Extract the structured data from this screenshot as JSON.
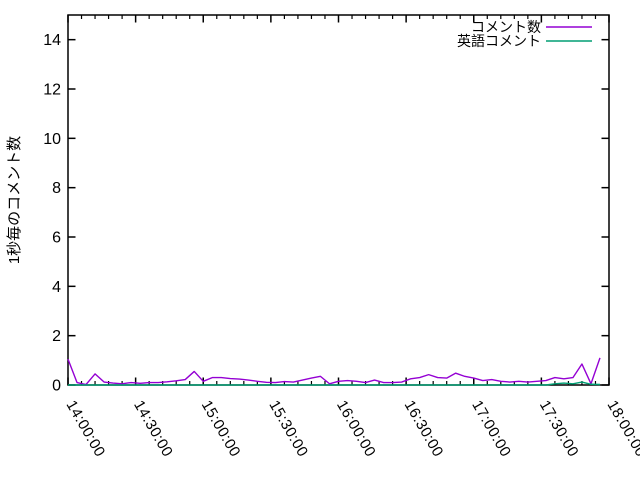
{
  "figure": {
    "background": "#ffffff",
    "border_color": "#000000",
    "text_color": "#000000"
  },
  "chart_data": {
    "type": "line",
    "title": "",
    "xlabel": "",
    "ylabel": "1秒毎のコメント数",
    "grid": false,
    "legend_position": "top-right-inside",
    "x_axis": {
      "start": "14:00:00",
      "end": "18:00:00",
      "tick_labels": [
        "14:00:00",
        "14:30:00",
        "15:00:00",
        "15:30:00",
        "16:00:00",
        "16:30:00",
        "17:00:00",
        "17:30:00",
        "18:00:00"
      ],
      "minor_tick_intervals_per_major": 5,
      "tick_label_rotation_deg": 60
    },
    "y_axis": {
      "min": 0,
      "max": 15,
      "tick_labels": [
        "0",
        "2",
        "4",
        "6",
        "8",
        "10",
        "12",
        "14"
      ]
    },
    "x_step_minutes": 4,
    "series": [
      {
        "name": "コメント数",
        "color": "#9400d3",
        "values": [
          1.05,
          0.1,
          0.02,
          0.45,
          0.12,
          0.08,
          0.05,
          0.1,
          0.07,
          0.1,
          0.1,
          0.13,
          0.17,
          0.22,
          0.55,
          0.15,
          0.3,
          0.3,
          0.26,
          0.24,
          0.2,
          0.15,
          0.11,
          0.1,
          0.14,
          0.12,
          0.2,
          0.28,
          0.35,
          0.05,
          0.15,
          0.18,
          0.15,
          0.1,
          0.2,
          0.1,
          0.1,
          0.12,
          0.25,
          0.3,
          0.42,
          0.3,
          0.28,
          0.48,
          0.35,
          0.28,
          0.18,
          0.22,
          0.15,
          0.12,
          0.15,
          0.12,
          0.15,
          0.18,
          0.3,
          0.25,
          0.3,
          0.85,
          0.05,
          1.1
        ]
      },
      {
        "name": "英語コメント",
        "color": "#009e73",
        "values": [
          0,
          0,
          0,
          0,
          0,
          0,
          0,
          0,
          0,
          0,
          0,
          0,
          0,
          0,
          0,
          0,
          0,
          0,
          0,
          0,
          0,
          0,
          0,
          0,
          0,
          0,
          0,
          0,
          0,
          0,
          0,
          0,
          0,
          0,
          0,
          0,
          0,
          0,
          0,
          0,
          0,
          0,
          0,
          0,
          0,
          0,
          0,
          0,
          0,
          0,
          0,
          0,
          0,
          0,
          0.05,
          0.08,
          0.05,
          0.12,
          0.03,
          0.02
        ]
      }
    ]
  }
}
